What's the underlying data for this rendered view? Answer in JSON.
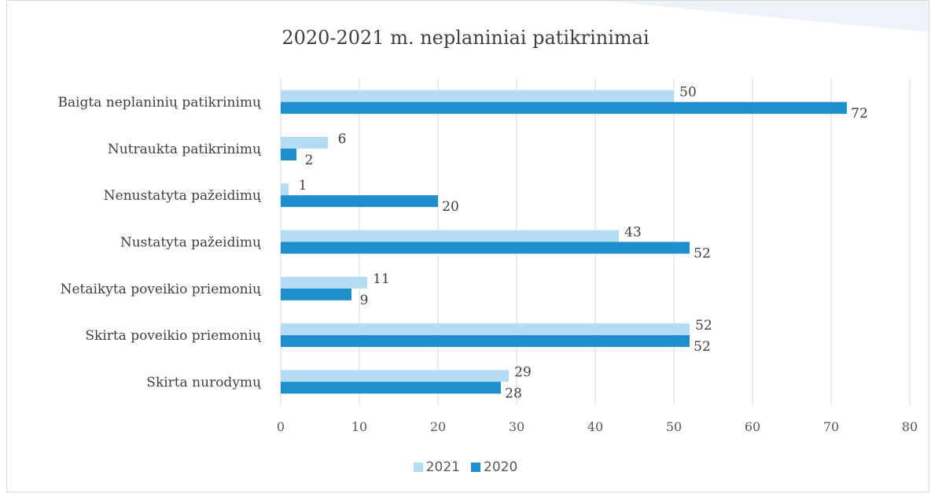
{
  "colors": {
    "series_2021": "#b4ddf3",
    "series_2020": "#1f8ecd",
    "grid": "#d9d9d9",
    "deco": "#eef3fa"
  },
  "chart_data": {
    "type": "bar",
    "orientation": "horizontal",
    "title": "2020-2021 m. neplaniniai patikrinimai",
    "xlabel": "",
    "ylabel": "",
    "categories": [
      "Baigta neplaninių patikrinimų",
      "Nutraukta patikrinimų",
      "Nenustatyta pažeidimų",
      "Nustatyta pažeidimų",
      "Netaikyta poveikio priemonių",
      "Skirta poveikio priemonių",
      "Skirta nurodymų"
    ],
    "series": [
      {
        "name": "2021",
        "values": [
          50,
          6,
          1,
          43,
          11,
          52,
          29
        ]
      },
      {
        "name": "2020",
        "values": [
          72,
          2,
          20,
          52,
          9,
          52,
          28
        ]
      }
    ],
    "xlim": [
      0,
      80
    ],
    "xticks": [
      "0",
      "10",
      "20",
      "30",
      "40",
      "50",
      "60",
      "70",
      "80"
    ],
    "grid": true,
    "legend_position": "bottom"
  }
}
